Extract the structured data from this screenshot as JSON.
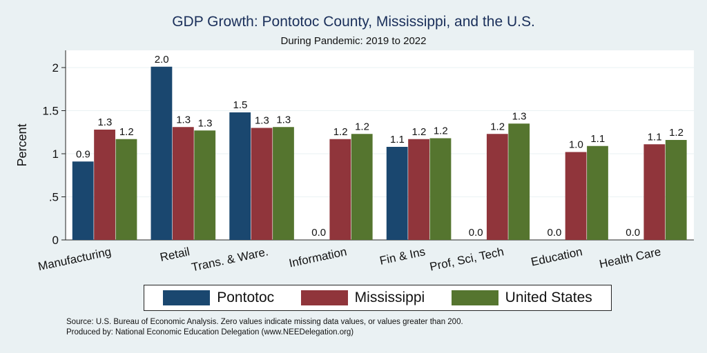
{
  "chart_data": {
    "type": "bar",
    "title": "GDP Growth: Pontotoc County, Mississippi, and the U.S.",
    "subtitle": "During Pandemic: 2019 to 2022",
    "ylabel": "Percent",
    "xlabel": "",
    "ylim": [
      0,
      2.2
    ],
    "yticks": [
      0,
      0.5,
      1,
      1.5,
      2
    ],
    "ytick_labels": [
      "0",
      ".5",
      "1",
      "1.5",
      "2"
    ],
    "grid": true,
    "legend_position": "bottom",
    "categories": [
      "Manufacturing",
      "Retail",
      "Trans. & Ware.",
      "Information",
      "Fin & Ins",
      "Prof, Sci, Tech",
      "Education",
      "Health Care"
    ],
    "series": [
      {
        "name": "Pontotoc",
        "color": "#1a476f",
        "values": [
          0.91,
          2.01,
          1.48,
          0,
          1.08,
          0,
          0,
          0
        ],
        "labels": [
          "0.9",
          "2.0",
          "1.5",
          "0.0",
          "1.1",
          "0.0",
          "0.0",
          "0.0"
        ]
      },
      {
        "name": "Mississippi",
        "color": "#90353b",
        "values": [
          1.28,
          1.31,
          1.3,
          1.17,
          1.17,
          1.23,
          1.02,
          1.11
        ],
        "labels": [
          "1.3",
          "1.3",
          "1.3",
          "1.2",
          "1.2",
          "1.2",
          "1.0",
          "1.1"
        ]
      },
      {
        "name": "United States",
        "color": "#55752f",
        "values": [
          1.17,
          1.27,
          1.31,
          1.23,
          1.18,
          1.35,
          1.09,
          1.16
        ],
        "labels": [
          "1.2",
          "1.3",
          "1.3",
          "1.2",
          "1.2",
          "1.3",
          "1.1",
          "1.2"
        ]
      }
    ]
  },
  "notes": {
    "source": "Source: U.S. Bureau of Economic Analysis. Zero values indicate missing data values, or values greater than 200.",
    "producer": "Produced by: National Economic Education Delegation (www.NEEDelegation.org)"
  }
}
